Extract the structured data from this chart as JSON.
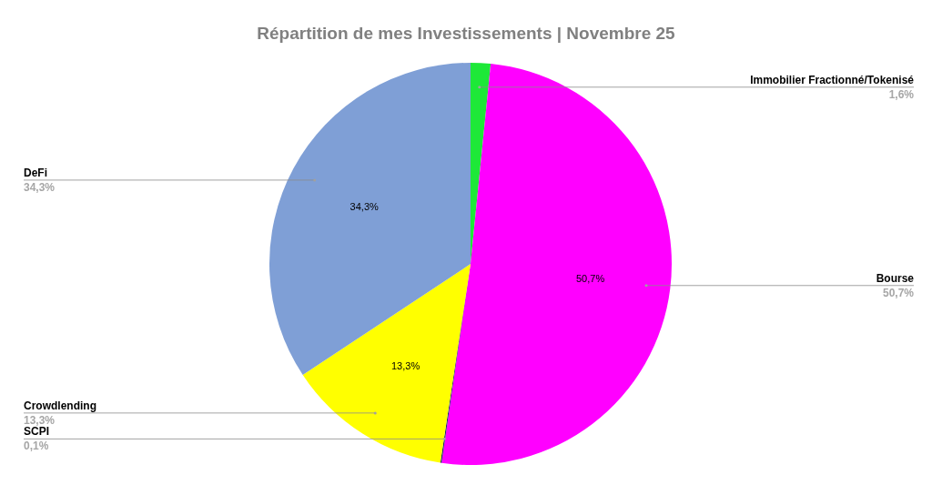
{
  "chart_data": {
    "type": "pie",
    "title": "Répartition de mes Investissements | Novembre 25",
    "categories": [
      "Immobilier Fractionné/Tokenisé",
      "Bourse",
      "SCPI",
      "Crowdlending",
      "DeFi"
    ],
    "values": [
      1.6,
      50.7,
      0.1,
      13.3,
      34.3
    ],
    "value_labels": [
      "1,6%",
      "50,7%",
      "0,1%",
      "13,3%",
      "34,3%"
    ],
    "colors": [
      "#1ee838",
      "#ff00ff",
      "#1f2a6b",
      "#ffff00",
      "#7f9fd6"
    ],
    "legend": false
  }
}
